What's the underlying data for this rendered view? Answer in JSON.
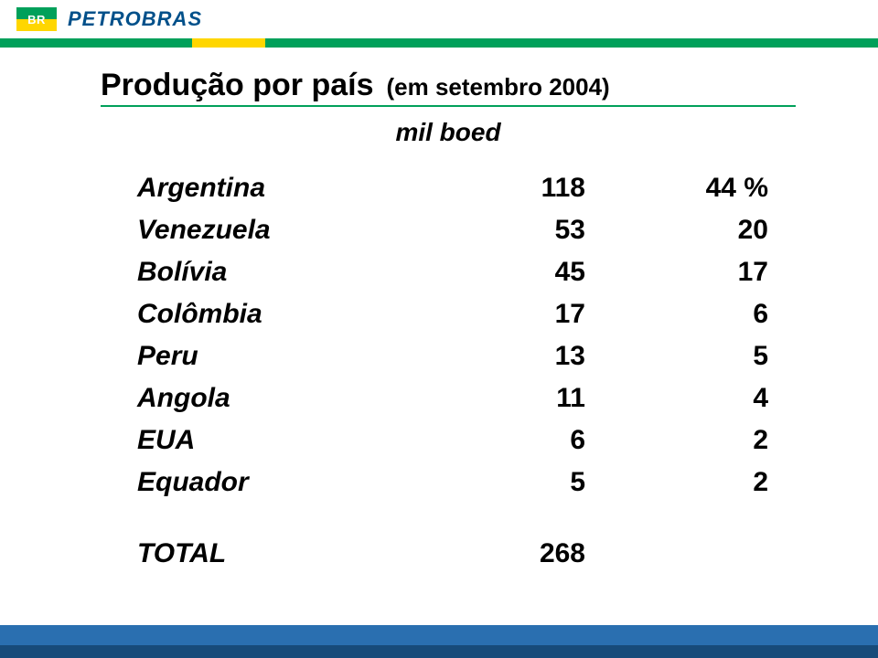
{
  "brand": {
    "logo_text": "BR",
    "company": "PETROBRAS",
    "logo_top_color": "#00a05a",
    "logo_bottom_color": "#ffd600",
    "company_color": "#00508a"
  },
  "stripe": {
    "green": "#00a05a",
    "yellow": "#ffd600"
  },
  "title": "Produção por país",
  "subtitle": "(em setembro 2004)",
  "unit_label": "mil boed",
  "rows": [
    {
      "country": "Argentina",
      "value": "118",
      "pct": "44 %"
    },
    {
      "country": "Venezuela",
      "value": "53",
      "pct": "20"
    },
    {
      "country": "Bolívia",
      "value": "45",
      "pct": "17"
    },
    {
      "country": "Colômbia",
      "value": "17",
      "pct": "6"
    },
    {
      "country": "Peru",
      "value": "13",
      "pct": "5"
    },
    {
      "country": "Angola",
      "value": "11",
      "pct": "4"
    },
    {
      "country": "EUA",
      "value": "6",
      "pct": "2"
    },
    {
      "country": "Equador",
      "value": "5",
      "pct": "2"
    }
  ],
  "total": {
    "label": "TOTAL",
    "value": "268"
  },
  "footer": {
    "bar1_color": "#2a6fb0",
    "bar2_color": "#174b7a"
  },
  "rule_color": "#00a05a",
  "text_color": "#000000",
  "fonts": {
    "title_size_pt": 26,
    "body_size_pt": 22
  }
}
